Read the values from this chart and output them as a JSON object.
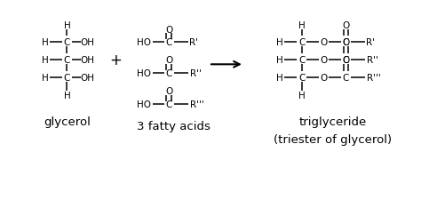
{
  "bg_color": "#ffffff",
  "text_color": "#000000",
  "figsize": [
    4.74,
    2.53
  ],
  "dpi": 100,
  "label_glycerol": "glycerol",
  "label_fatty_acids": "3 fatty acids",
  "label_triglyceride": "triglyceride",
  "label_triester": "(triester of glycerol)",
  "font_size_struct": 7.5,
  "font_size_label": 9.5
}
